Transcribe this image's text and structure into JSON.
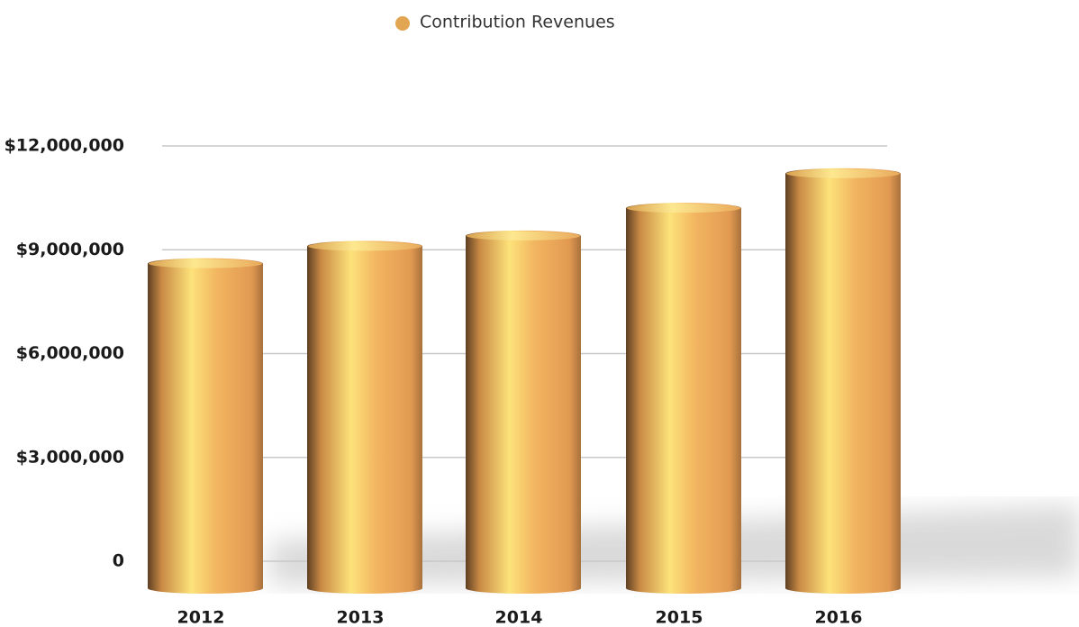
{
  "chart_data": {
    "type": "bar",
    "categories": [
      "2012",
      "2013",
      "2014",
      "2015",
      "2016"
    ],
    "series": [
      {
        "name": "Contribution Revenues",
        "color": "#e2a552",
        "values": [
          8600000,
          9100000,
          9400000,
          10200000,
          11200000
        ]
      }
    ],
    "ylim": [
      0,
      12000000
    ],
    "yticks": [
      0,
      {
        "value": 3000000,
        "label": "$3,000,000"
      },
      {
        "value": 6000000,
        "label": "$6,000,000"
      },
      {
        "value": 9000000,
        "label": "$9,000,000"
      },
      {
        "value": 12000000,
        "label": "$12,000,000"
      }
    ],
    "grid": true,
    "legend": "top"
  }
}
